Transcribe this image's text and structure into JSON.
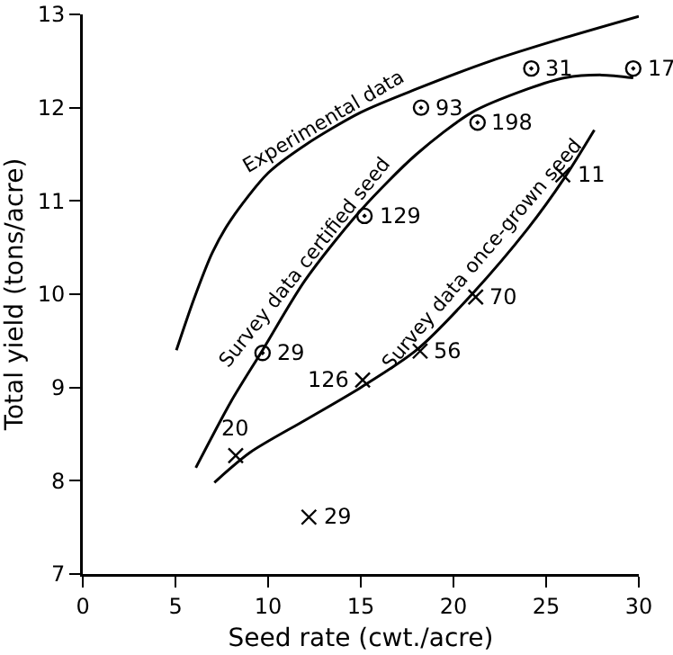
{
  "chart_data": {
    "type": "line",
    "xlabel": "Seed rate (cwt./acre)",
    "ylabel": "Total yield (tons/acre)",
    "xlim": [
      0,
      30
    ],
    "ylim": [
      7,
      13
    ],
    "xticks": [
      0,
      5,
      10,
      15,
      20,
      25,
      30
    ],
    "yticks": [
      7,
      8,
      9,
      10,
      11,
      12,
      13
    ],
    "grid": false,
    "legend": false,
    "series": [
      {
        "name": "Experimental data",
        "color": "#000000",
        "marker": "none",
        "x": [
          5.05,
          6,
          7,
          8,
          10,
          12,
          15,
          18,
          22,
          26,
          30
        ],
        "values": [
          9.4,
          9.95,
          10.45,
          10.8,
          11.3,
          11.6,
          11.95,
          12.2,
          12.5,
          12.75,
          12.98
        ]
      },
      {
        "name": "Survey data certified seed",
        "color": "#000000",
        "marker": "none",
        "x": [
          6.1,
          8,
          9.7,
          12,
          15,
          18,
          21,
          24,
          26,
          28,
          29.7
        ],
        "values": [
          8.14,
          8.85,
          9.4,
          10.15,
          10.9,
          11.5,
          11.95,
          12.2,
          12.32,
          12.35,
          12.32
        ]
      },
      {
        "name": "Survey data once-grown seed",
        "color": "#000000",
        "marker": "none",
        "x": [
          7.1,
          9,
          12,
          15,
          18,
          21,
          24,
          26,
          27.6
        ],
        "values": [
          7.98,
          8.3,
          8.65,
          9.0,
          9.4,
          10.0,
          10.7,
          11.25,
          11.76
        ]
      },
      {
        "type": "scatter",
        "color": "#000000",
        "marker": "circle",
        "x": [
          9.7,
          15.2,
          18.25,
          21.3,
          24.2,
          29.7
        ],
        "values": [
          9.37,
          10.84,
          12.0,
          11.84,
          12.42,
          12.42
        ]
      },
      {
        "type": "scatter",
        "color": "#000000",
        "marker": "cross",
        "x": [
          8.25,
          12.2,
          15.1,
          18.2,
          21.2,
          25.9
        ],
        "values": [
          8.27,
          7.61,
          9.08,
          9.39,
          9.97,
          11.28
        ]
      }
    ],
    "annotations": [
      {
        "text": "29",
        "x": 9.7,
        "y": 9.37
      },
      {
        "text": "129",
        "x": 15.2,
        "y": 10.84
      },
      {
        "text": "93",
        "x": 18.25,
        "y": 12.0
      },
      {
        "text": "198",
        "x": 21.3,
        "y": 11.84
      },
      {
        "text": "31",
        "x": 24.2,
        "y": 12.42
      },
      {
        "text": "17",
        "x": 29.7,
        "y": 12.42
      },
      {
        "text": "20",
        "x": 8.25,
        "y": 8.27
      },
      {
        "text": "29",
        "x": 12.2,
        "y": 7.61
      },
      {
        "text": "126",
        "x": 15.1,
        "y": 9.08
      },
      {
        "text": "56",
        "x": 18.2,
        "y": 9.39
      },
      {
        "text": "70",
        "x": 21.2,
        "y": 9.97
      },
      {
        "text": "11",
        "x": 25.9,
        "y": 11.28
      }
    ]
  }
}
